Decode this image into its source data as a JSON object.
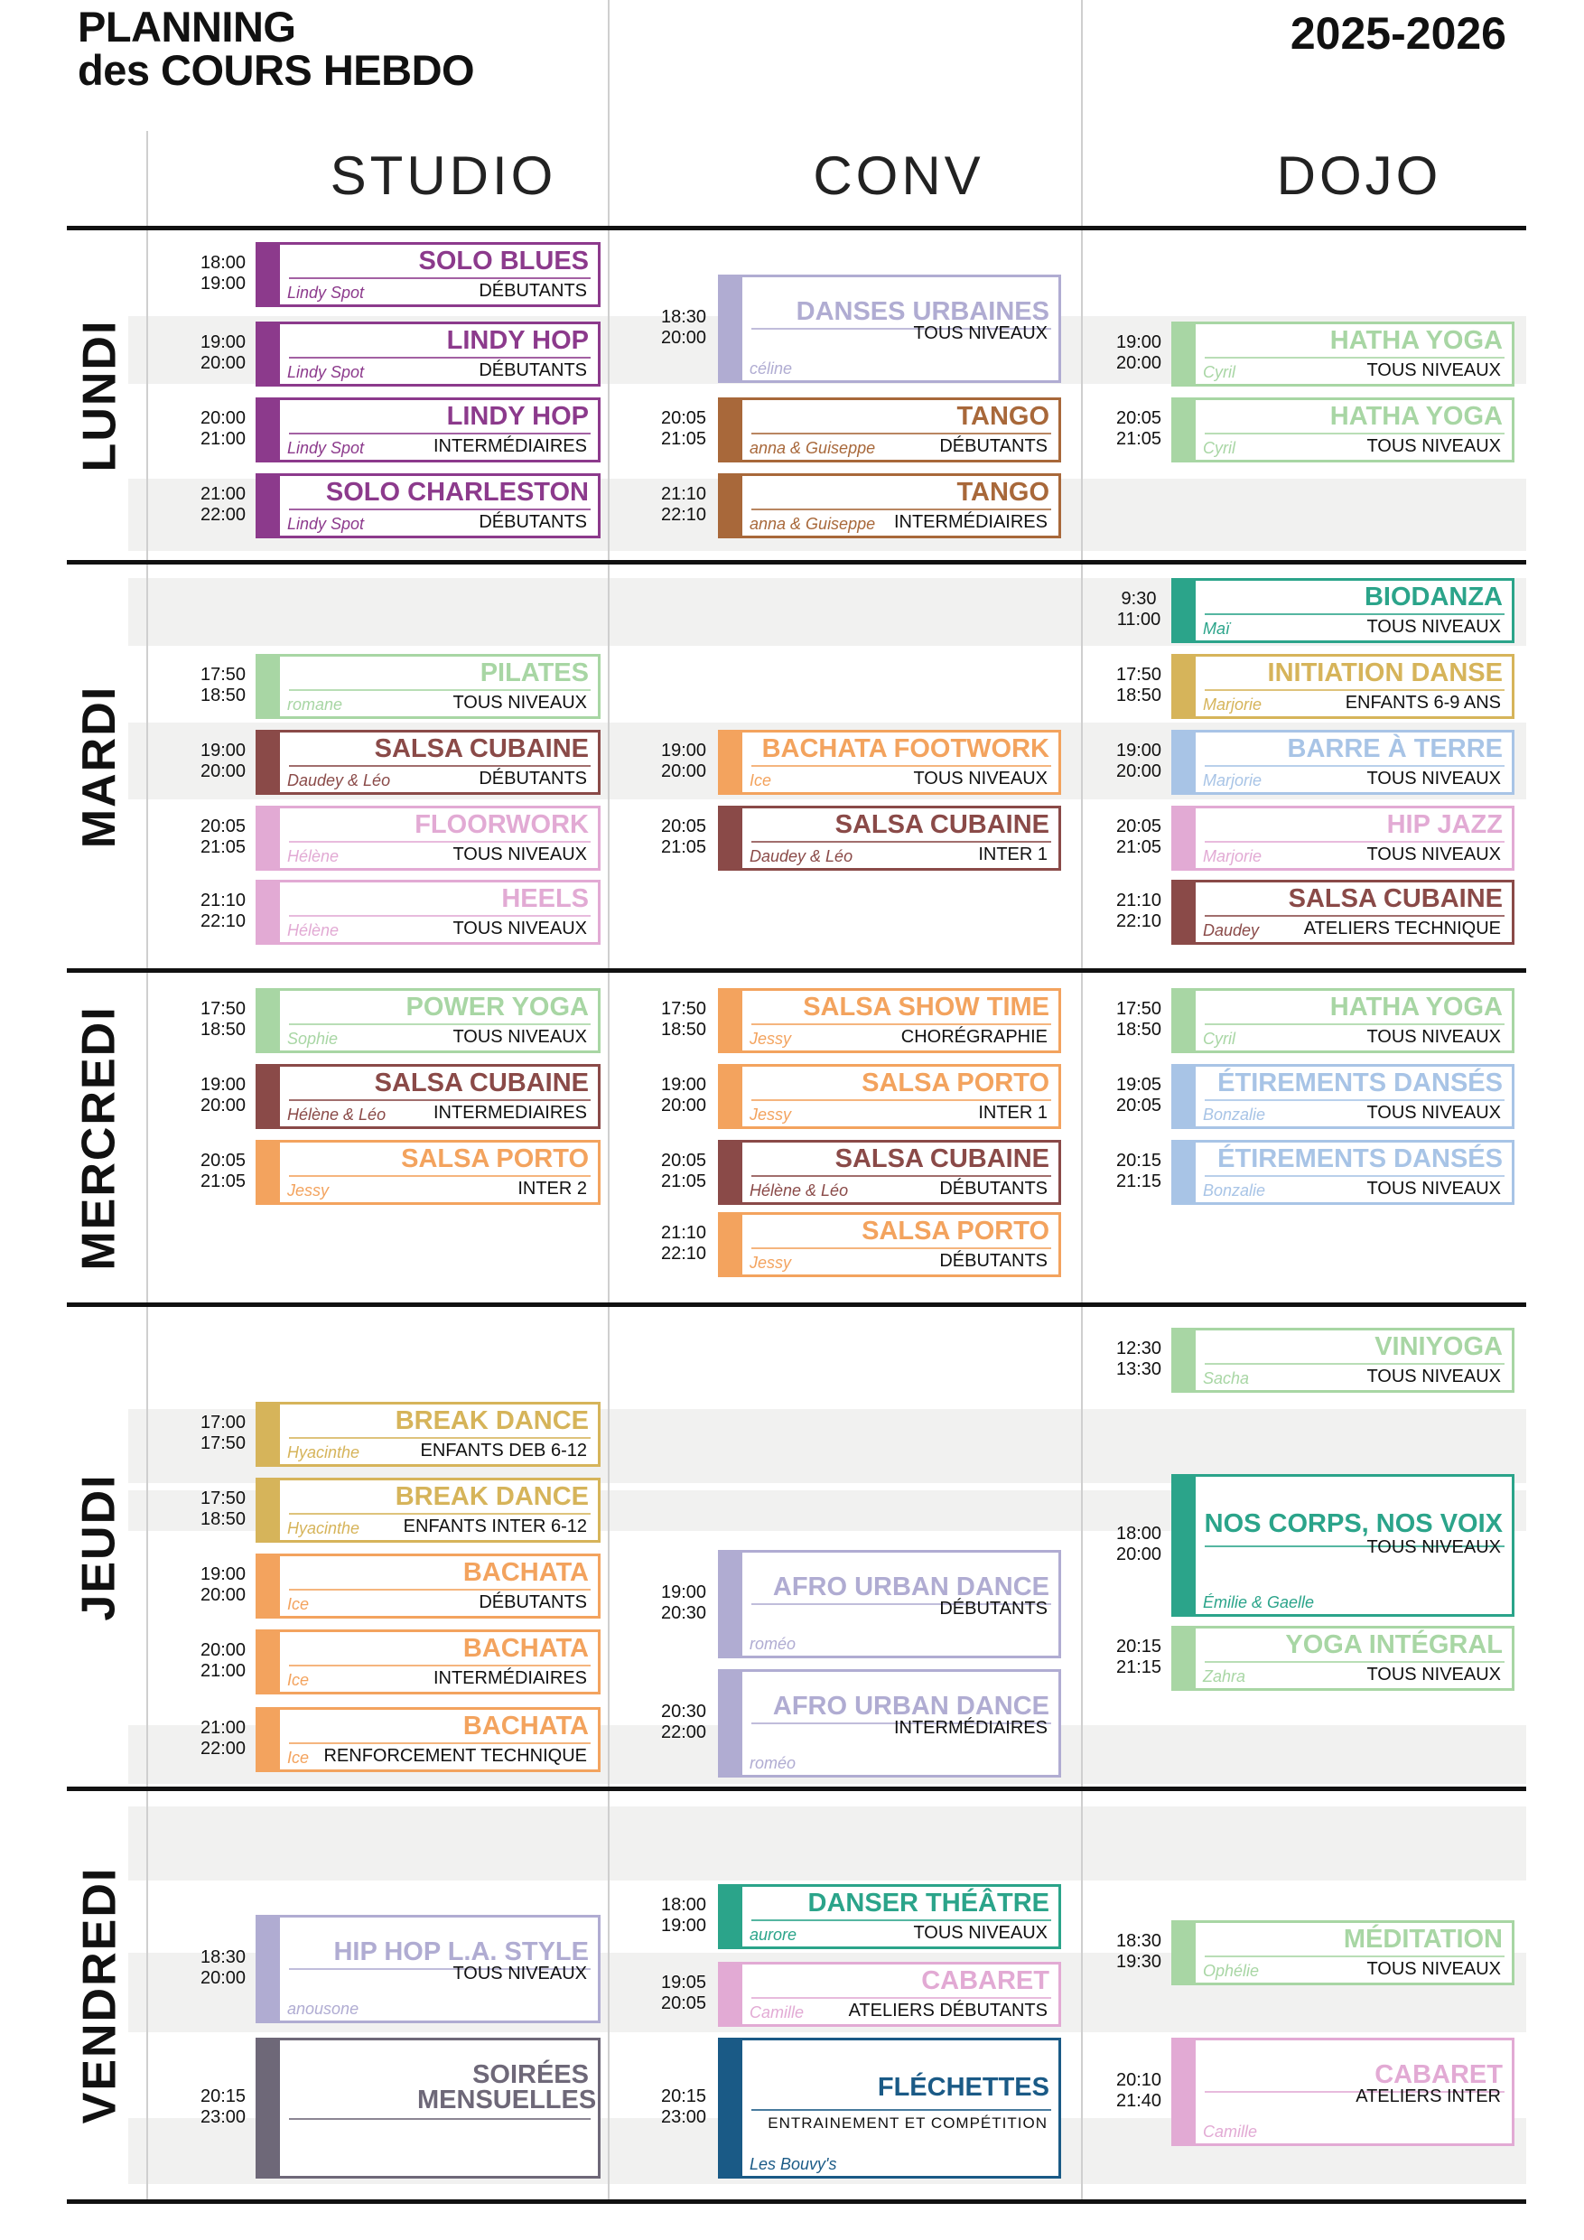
{
  "header": {
    "title_line1": "PLANNING",
    "title_line2": "des COURS HEBDO",
    "year": "2025-2026"
  },
  "columns": {
    "studio": "STUDIO",
    "conv": "CONV",
    "dojo": "DOJO"
  },
  "days": {
    "lundi": "LUNDI",
    "mardi": "MARDI",
    "mercredi": "MERCREDI",
    "jeudi": "JEUDI",
    "vendredi": "VENDREDI"
  },
  "colors": {
    "purple": "#8c3a8c",
    "lavender": "#b0acd2",
    "brown": "#a8683a",
    "green": "#a8d6a4",
    "teal": "#2ba48a",
    "maroon": "#8a4a48",
    "pink": "#e2aad4",
    "orange": "#f3a35e",
    "yellow": "#d6b45a",
    "blue": "#a8c4e6",
    "grey": "#6e6878",
    "navy": "#1a5a86"
  },
  "classes": [
    {
      "day": "lundi",
      "room": "studio",
      "start": "18:00",
      "end": "19:00",
      "name": "SOLO BLUES",
      "teacher": "Lindy Spot",
      "level": "DÉBUTANTS",
      "color": "purple"
    },
    {
      "day": "lundi",
      "room": "studio",
      "start": "19:00",
      "end": "20:00",
      "name": "LINDY HOP",
      "teacher": "Lindy Spot",
      "level": "DÉBUTANTS",
      "color": "purple"
    },
    {
      "day": "lundi",
      "room": "studio",
      "start": "20:00",
      "end": "21:00",
      "name": "LINDY HOP",
      "teacher": "Lindy Spot",
      "level": "INTERMÉDIAIRES",
      "color": "purple"
    },
    {
      "day": "lundi",
      "room": "studio",
      "start": "21:00",
      "end": "22:00",
      "name": "SOLO CHARLESTON",
      "teacher": "Lindy Spot",
      "level": "DÉBUTANTS",
      "color": "purple"
    },
    {
      "day": "lundi",
      "room": "conv",
      "start": "18:30",
      "end": "20:00",
      "name": "DANSES URBAINES",
      "teacher": "céline",
      "level": "TOUS NIVEAUX",
      "color": "lavender"
    },
    {
      "day": "lundi",
      "room": "conv",
      "start": "20:05",
      "end": "21:05",
      "name": "TANGO",
      "teacher": "anna & Guiseppe",
      "level": "DÉBUTANTS",
      "color": "brown"
    },
    {
      "day": "lundi",
      "room": "conv",
      "start": "21:10",
      "end": "22:10",
      "name": "TANGO",
      "teacher": "anna & Guiseppe",
      "level": "INTERMÉDIAIRES",
      "color": "brown"
    },
    {
      "day": "lundi",
      "room": "dojo",
      "start": "19:00",
      "end": "20:00",
      "name": "HATHA YOGA",
      "teacher": "Cyril",
      "level": "TOUS NIVEAUX",
      "color": "green"
    },
    {
      "day": "lundi",
      "room": "dojo",
      "start": "20:05",
      "end": "21:05",
      "name": "HATHA YOGA",
      "teacher": "Cyril",
      "level": "TOUS NIVEAUX",
      "color": "green"
    },
    {
      "day": "mardi",
      "room": "studio",
      "start": "17:50",
      "end": "18:50",
      "name": "PILATES",
      "teacher": "romane",
      "level": "TOUS NIVEAUX",
      "color": "green"
    },
    {
      "day": "mardi",
      "room": "studio",
      "start": "19:00",
      "end": "20:00",
      "name": "SALSA CUBAINE",
      "teacher": "Daudey & Léo",
      "level": "DÉBUTANTS",
      "color": "maroon"
    },
    {
      "day": "mardi",
      "room": "studio",
      "start": "20:05",
      "end": "21:05",
      "name": "FLOORWORK",
      "teacher": "Hélène",
      "level": "TOUS NIVEAUX",
      "color": "pink"
    },
    {
      "day": "mardi",
      "room": "studio",
      "start": "21:10",
      "end": "22:10",
      "name": "HEELS",
      "teacher": "Hélène",
      "level": "TOUS NIVEAUX",
      "color": "pink"
    },
    {
      "day": "mardi",
      "room": "conv",
      "start": "19:00",
      "end": "20:00",
      "name": "BACHATA FOOTWORK",
      "teacher": "Ice",
      "level": "TOUS NIVEAUX",
      "color": "orange"
    },
    {
      "day": "mardi",
      "room": "conv",
      "start": "20:05",
      "end": "21:05",
      "name": "SALSA CUBAINE",
      "teacher": "Daudey & Léo",
      "level": "INTER 1",
      "color": "maroon"
    },
    {
      "day": "mardi",
      "room": "dojo",
      "start": "9:30",
      "end": "11:00",
      "name": "BIODANZA",
      "teacher": "Maï",
      "level": "TOUS NIVEAUX",
      "color": "teal"
    },
    {
      "day": "mardi",
      "room": "dojo",
      "start": "17:50",
      "end": "18:50",
      "name": "INITIATION DANSE",
      "teacher": "Marjorie",
      "level": "ENFANTS 6-9 ANS",
      "color": "yellow"
    },
    {
      "day": "mardi",
      "room": "dojo",
      "start": "19:00",
      "end": "20:00",
      "name": "BARRE À TERRE",
      "teacher": "Marjorie",
      "level": "TOUS NIVEAUX",
      "color": "blue"
    },
    {
      "day": "mardi",
      "room": "dojo",
      "start": "20:05",
      "end": "21:05",
      "name": "HIP JAZZ",
      "teacher": "Marjorie",
      "level": "TOUS NIVEAUX",
      "color": "pink"
    },
    {
      "day": "mardi",
      "room": "dojo",
      "start": "21:10",
      "end": "22:10",
      "name": "SALSA CUBAINE",
      "teacher": "Daudey",
      "level": "ATELIERS TECHNIQUE",
      "color": "maroon"
    },
    {
      "day": "mercredi",
      "room": "studio",
      "start": "17:50",
      "end": "18:50",
      "name": "POWER YOGA",
      "teacher": "Sophie",
      "level": "TOUS NIVEAUX",
      "color": "green"
    },
    {
      "day": "mercredi",
      "room": "studio",
      "start": "19:00",
      "end": "20:00",
      "name": "SALSA CUBAINE",
      "teacher": "Hélène & Léo",
      "level": "INTERMEDIAIRES",
      "color": "maroon"
    },
    {
      "day": "mercredi",
      "room": "studio",
      "start": "20:05",
      "end": "21:05",
      "name": "SALSA PORTO",
      "teacher": "Jessy",
      "level": "INTER 2",
      "color": "orange"
    },
    {
      "day": "mercredi",
      "room": "conv",
      "start": "17:50",
      "end": "18:50",
      "name": "SALSA SHOW TIME",
      "teacher": "Jessy",
      "level": "CHORÉGRAPHIE",
      "color": "orange"
    },
    {
      "day": "mercredi",
      "room": "conv",
      "start": "19:00",
      "end": "20:00",
      "name": "SALSA PORTO",
      "teacher": "Jessy",
      "level": "INTER 1",
      "color": "orange"
    },
    {
      "day": "mercredi",
      "room": "conv",
      "start": "20:05",
      "end": "21:05",
      "name": "SALSA CUBAINE",
      "teacher": "Hélène & Léo",
      "level": "DÉBUTANTS",
      "color": "maroon"
    },
    {
      "day": "mercredi",
      "room": "conv",
      "start": "21:10",
      "end": "22:10",
      "name": "SALSA PORTO",
      "teacher": "Jessy",
      "level": "DÉBUTANTS",
      "color": "orange"
    },
    {
      "day": "mercredi",
      "room": "dojo",
      "start": "17:50",
      "end": "18:50",
      "name": "HATHA YOGA",
      "teacher": "Cyril",
      "level": "TOUS NIVEAUX",
      "color": "green"
    },
    {
      "day": "mercredi",
      "room": "dojo",
      "start": "19:05",
      "end": "20:05",
      "name": "ÉTIREMENTS DANSÉS",
      "teacher": "Bonzalie",
      "level": "TOUS NIVEAUX",
      "color": "blue"
    },
    {
      "day": "mercredi",
      "room": "dojo",
      "start": "20:15",
      "end": "21:15",
      "name": "ÉTIREMENTS DANSÉS",
      "teacher": "Bonzalie",
      "level": "TOUS NIVEAUX",
      "color": "blue"
    },
    {
      "day": "jeudi",
      "room": "studio",
      "start": "17:00",
      "end": "17:50",
      "name": "BREAK DANCE",
      "teacher": "Hyacinthe",
      "level": "ENFANTS DEB 6-12",
      "color": "yellow"
    },
    {
      "day": "jeudi",
      "room": "studio",
      "start": "17:50",
      "end": "18:50",
      "name": "BREAK DANCE",
      "teacher": "Hyacinthe",
      "level": "ENFANTS INTER 6-12",
      "color": "yellow"
    },
    {
      "day": "jeudi",
      "room": "studio",
      "start": "19:00",
      "end": "20:00",
      "name": "BACHATA",
      "teacher": "Ice",
      "level": "DÉBUTANTS",
      "color": "orange"
    },
    {
      "day": "jeudi",
      "room": "studio",
      "start": "20:00",
      "end": "21:00",
      "name": "BACHATA",
      "teacher": "Ice",
      "level": "INTERMÉDIAIRES",
      "color": "orange"
    },
    {
      "day": "jeudi",
      "room": "studio",
      "start": "21:00",
      "end": "22:00",
      "name": "BACHATA",
      "teacher": "Ice",
      "level": "RENFORCEMENT TECHNIQUE",
      "color": "orange"
    },
    {
      "day": "jeudi",
      "room": "conv",
      "start": "19:00",
      "end": "20:30",
      "name": "AFRO URBAN DANCE",
      "teacher": "roméo",
      "level": "DÉBUTANTS",
      "color": "lavender"
    },
    {
      "day": "jeudi",
      "room": "conv",
      "start": "20:30",
      "end": "22:00",
      "name": "AFRO URBAN DANCE",
      "teacher": "roméo",
      "level": "INTERMÉDIAIRES",
      "color": "lavender"
    },
    {
      "day": "jeudi",
      "room": "dojo",
      "start": "12:30",
      "end": "13:30",
      "name": "VINIYOGA",
      "teacher": "Sacha",
      "level": "TOUS NIVEAUX",
      "color": "green"
    },
    {
      "day": "jeudi",
      "room": "dojo",
      "start": "18:00",
      "end": "20:00",
      "name": "NOS CORPS, NOS VOIX",
      "teacher": "Émilie & Gaelle",
      "level": "TOUS NIVEAUX",
      "color": "teal"
    },
    {
      "day": "jeudi",
      "room": "dojo",
      "start": "20:15",
      "end": "21:15",
      "name": "YOGA INTÉGRAL",
      "teacher": "Zahra",
      "level": "TOUS NIVEAUX",
      "color": "green"
    },
    {
      "day": "vendredi",
      "room": "studio",
      "start": "18:30",
      "end": "20:00",
      "name": "HIP HOP L.A. STYLE",
      "teacher": "anousone",
      "level": "TOUS NIVEAUX",
      "color": "lavender"
    },
    {
      "day": "vendredi",
      "room": "studio",
      "start": "20:15",
      "end": "23:00",
      "name": "SOIRÉES MENSUELLES",
      "teacher": "",
      "level": "",
      "color": "grey"
    },
    {
      "day": "vendredi",
      "room": "conv",
      "start": "18:00",
      "end": "19:00",
      "name": "DANSER THÉÂTRE",
      "teacher": "aurore",
      "level": "TOUS NIVEAUX",
      "color": "teal"
    },
    {
      "day": "vendredi",
      "room": "conv",
      "start": "19:05",
      "end": "20:05",
      "name": "CABARET",
      "teacher": "Camille",
      "level": "ATELIERS DÉBUTANTS",
      "color": "pink"
    },
    {
      "day": "vendredi",
      "room": "conv",
      "start": "20:15",
      "end": "23:00",
      "name": "FLÉCHETTES",
      "teacher": "Les Bouvy's",
      "level": "ENTRAINEMENT ET COMPÉTITION",
      "color": "navy"
    },
    {
      "day": "vendredi",
      "room": "dojo",
      "start": "18:30",
      "end": "19:30",
      "name": "MÉDITATION",
      "teacher": "Ophélie",
      "level": "TOUS NIVEAUX",
      "color": "green"
    },
    {
      "day": "vendredi",
      "room": "dojo",
      "start": "20:10",
      "end": "21:40",
      "name": "CABARET",
      "teacher": "Camille",
      "level": "ATELIERS INTER",
      "color": "pink"
    }
  ]
}
